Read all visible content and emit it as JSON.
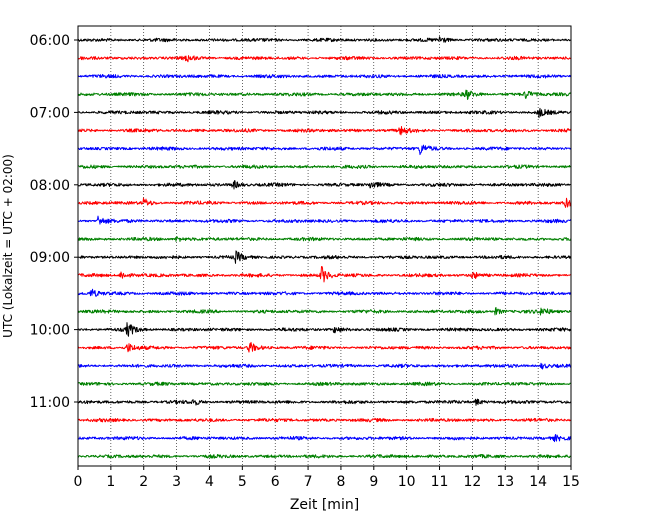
{
  "chart_data": {
    "type": "line",
    "title": "",
    "xlabel": "Zeit  [min]",
    "ylabel": "UTC (Lokalzeit = UTC + 02:00)",
    "xlim": [
      0,
      15
    ],
    "x_ticks": [
      0,
      1,
      2,
      3,
      4,
      5,
      6,
      7,
      8,
      9,
      10,
      11,
      12,
      13,
      14,
      15
    ],
    "y_tick_labels": [
      "06:00",
      "07:00",
      "08:00",
      "09:00",
      "10:00",
      "11:00"
    ],
    "rows_per_hour": 4,
    "row_start_times": [
      "06:00",
      "06:15",
      "06:30",
      "06:45",
      "07:00",
      "07:15",
      "07:30",
      "07:45",
      "08:00",
      "08:15",
      "08:30",
      "08:45",
      "09:00",
      "09:15",
      "09:30",
      "09:45",
      "10:00",
      "10:15",
      "10:30",
      "10:45",
      "11:00",
      "11:15",
      "11:30",
      "11:45"
    ],
    "grid": "vertical dotted at each minute",
    "series_colors": [
      "#000000",
      "#ff0000",
      "#0000ff",
      "#008000"
    ],
    "events": [
      {
        "row": 0,
        "minute": 11.0,
        "amp": 0.6
      },
      {
        "row": 1,
        "minute": 3.3,
        "amp": 0.5
      },
      {
        "row": 3,
        "minute": 11.8,
        "amp": 0.8
      },
      {
        "row": 3,
        "minute": 13.6,
        "amp": 0.7
      },
      {
        "row": 4,
        "minute": 14.0,
        "amp": 0.8
      },
      {
        "row": 5,
        "minute": 9.8,
        "amp": 0.6
      },
      {
        "row": 6,
        "minute": 10.4,
        "amp": 0.9
      },
      {
        "row": 8,
        "minute": 4.7,
        "amp": 0.8
      },
      {
        "row": 8,
        "minute": 8.9,
        "amp": 0.6
      },
      {
        "row": 9,
        "minute": 2.0,
        "amp": 0.7
      },
      {
        "row": 9,
        "minute": 14.8,
        "amp": 0.9
      },
      {
        "row": 10,
        "minute": 0.6,
        "amp": 0.9
      },
      {
        "row": 11,
        "minute": 3.0,
        "amp": 0.5
      },
      {
        "row": 12,
        "minute": 4.8,
        "amp": 0.9
      },
      {
        "row": 13,
        "minute": 1.3,
        "amp": 0.8
      },
      {
        "row": 13,
        "minute": 7.4,
        "amp": 1.5
      },
      {
        "row": 13,
        "minute": 12.0,
        "amp": 0.6
      },
      {
        "row": 14,
        "minute": 0.4,
        "amp": 0.7
      },
      {
        "row": 15,
        "minute": 12.7,
        "amp": 0.6
      },
      {
        "row": 15,
        "minute": 14.1,
        "amp": 0.7
      },
      {
        "row": 16,
        "minute": 1.5,
        "amp": 1.2
      },
      {
        "row": 16,
        "minute": 7.8,
        "amp": 0.5
      },
      {
        "row": 17,
        "minute": 1.5,
        "amp": 0.8
      },
      {
        "row": 17,
        "minute": 5.2,
        "amp": 1.0
      },
      {
        "row": 18,
        "minute": 14.1,
        "amp": 0.5
      },
      {
        "row": 20,
        "minute": 3.5,
        "amp": 0.5
      },
      {
        "row": 20,
        "minute": 12.1,
        "amp": 0.6
      },
      {
        "row": 22,
        "minute": 14.5,
        "amp": 0.4
      }
    ]
  }
}
